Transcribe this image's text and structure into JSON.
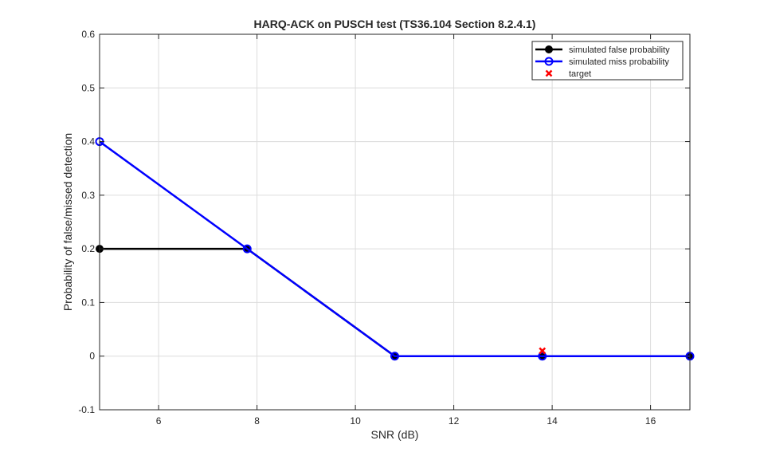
{
  "chart_data": {
    "type": "line",
    "title": "HARQ-ACK on PUSCH test (TS36.104 Section 8.2.4.1)",
    "xlabel": "SNR (dB)",
    "ylabel": "Probability of false/missed detection",
    "xlim": [
      4.8,
      16.8
    ],
    "ylim": [
      -0.1,
      0.6
    ],
    "xticks": [
      6,
      8,
      10,
      12,
      14,
      16
    ],
    "xtick_labels": [
      "6",
      "8",
      "10",
      "12",
      "14",
      "16"
    ],
    "yticks": [
      -0.1,
      0,
      0.1,
      0.2,
      0.3,
      0.4,
      0.5,
      0.6
    ],
    "ytick_labels": [
      "-0.1",
      "0",
      "0.1",
      "0.2",
      "0.3",
      "0.4",
      "0.5",
      "0.6"
    ],
    "grid": true,
    "legend_position": "top-right",
    "series": [
      {
        "name": "simulated false probability",
        "color": "#000000",
        "marker": "filled-circle",
        "x": [
          4.8,
          7.8,
          10.8,
          13.8,
          16.8
        ],
        "y": [
          0.2,
          0.2,
          0,
          0,
          0
        ]
      },
      {
        "name": "simulated miss probability",
        "color": "#0000ff",
        "marker": "open-circle",
        "x": [
          4.8,
          7.8,
          10.8,
          13.8,
          16.8
        ],
        "y": [
          0.4,
          0.2,
          0,
          0,
          0
        ]
      },
      {
        "name": "target",
        "color": "#ff0000",
        "marker": "x",
        "x": [
          13.8
        ],
        "y": [
          0.01
        ]
      }
    ]
  }
}
